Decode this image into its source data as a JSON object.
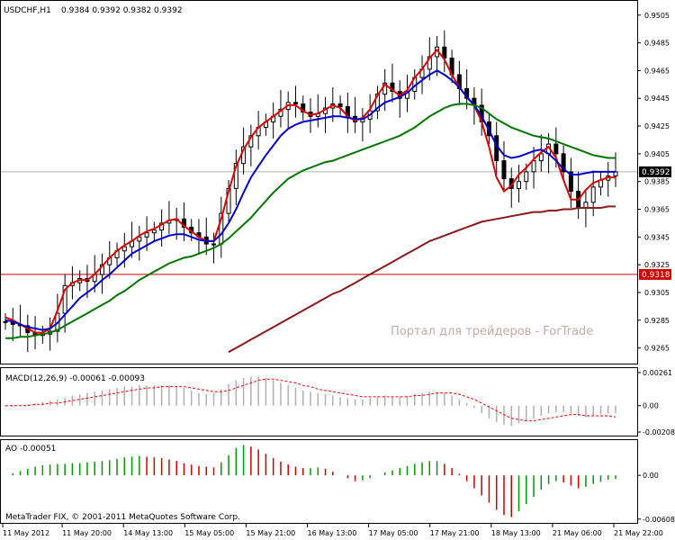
{
  "header": {
    "symbol_title": "USDCHF,H1",
    "ohlc": "0.9384 0.9392 0.9382 0.9392"
  },
  "watermark": "Портал для трейдеров - ForTrade",
  "footer": "MetaTrader FIX, © 2001-2011 MetaQuotes Software Corp.",
  "colors": {
    "candle": "#000000",
    "ema_fast": "#e00000",
    "ma_mid": "#0000cc",
    "ma_slow": "#007700",
    "ma_long": "#8b1a1a",
    "level_line": "#cc0000",
    "macd_hist": "#b0b0b0",
    "macd_signal": "#ff0000",
    "ao_up": "#009900",
    "ao_down": "#cc0000"
  },
  "chart_data": [
    {
      "panel": "price",
      "type": "line",
      "title": "USDCHF,H1",
      "ylim": [
        0.9255,
        0.9512
      ],
      "y_ticks": [
        "0.9505",
        "0.9485",
        "0.9465",
        "0.9445",
        "0.9425",
        "0.9405",
        "0.9385",
        "0.9365",
        "0.9345",
        "0.9325",
        "0.9305",
        "0.9285",
        "0.9265"
      ],
      "current_price_label": "0.9392",
      "current_price": 0.9392,
      "level_label": "0.9318",
      "level": 0.9318,
      "x_labels": [
        "11 May 2012",
        "11 May 20:00",
        "14 May 13:00",
        "15 May 05:00",
        "15 May 21:00",
        "16 May 13:00",
        "17 May 05:00",
        "17 May 21:00",
        "18 May 13:00",
        "21 May 06:00",
        "21 May 22:00"
      ],
      "series": [
        {
          "role": "close",
          "values": [
            0.9284,
            0.9282,
            0.9281,
            0.9276,
            0.9274,
            0.9275,
            0.9277,
            0.929,
            0.931,
            0.9312,
            0.9315,
            0.9313,
            0.9318,
            0.9325,
            0.933,
            0.9335,
            0.9338,
            0.9342,
            0.9345,
            0.9348,
            0.935,
            0.9355,
            0.9357,
            0.9358,
            0.9352,
            0.9348,
            0.9345,
            0.934,
            0.934,
            0.9362,
            0.938,
            0.9398,
            0.941,
            0.9418,
            0.9424,
            0.9428,
            0.9432,
            0.9437,
            0.9442,
            0.9441,
            0.9435,
            0.9432,
            0.9434,
            0.9438,
            0.9441,
            0.9439,
            0.9432,
            0.9428,
            0.943,
            0.9436,
            0.9448,
            0.9456,
            0.945,
            0.9445,
            0.945,
            0.946,
            0.9466,
            0.9475,
            0.9482,
            0.9474,
            0.9462,
            0.9452,
            0.9445,
            0.944,
            0.9428,
            0.9418,
            0.94,
            0.9387,
            0.938,
            0.9385,
            0.9392,
            0.94,
            0.9405,
            0.9412,
            0.9405,
            0.9392,
            0.9378,
            0.9366,
            0.937,
            0.9381,
            0.9386,
            0.9389,
            0.9392
          ]
        },
        {
          "role": "ma_fast",
          "values": [
            0.9287,
            0.9285,
            0.9282,
            0.9279,
            0.9276,
            0.9276,
            0.9279,
            0.9292,
            0.9307,
            0.9312,
            0.9314,
            0.9314,
            0.9318,
            0.9324,
            0.933,
            0.9335,
            0.9339,
            0.9342,
            0.9346,
            0.9349,
            0.9351,
            0.9354,
            0.9357,
            0.9358,
            0.9353,
            0.9349,
            0.9345,
            0.9342,
            0.9342,
            0.9358,
            0.9378,
            0.9396,
            0.9408,
            0.9417,
            0.9424,
            0.9428,
            0.9432,
            0.9436,
            0.944,
            0.944,
            0.9436,
            0.9433,
            0.9434,
            0.9437,
            0.944,
            0.9438,
            0.9432,
            0.9429,
            0.9431,
            0.9437,
            0.9447,
            0.9455,
            0.9451,
            0.9447,
            0.9451,
            0.946,
            0.9466,
            0.9474,
            0.948,
            0.9473,
            0.9462,
            0.9453,
            0.9446,
            0.944,
            0.9428,
            0.941,
            0.9388,
            0.9378,
            0.9382,
            0.939,
            0.9395,
            0.9401,
            0.9406,
            0.941,
            0.9402,
            0.9386,
            0.9372,
            0.9372,
            0.9379,
            0.9384,
            0.9386,
            0.9388,
            0.9388
          ]
        },
        {
          "role": "ma_mid",
          "values": [
            0.9285,
            0.9284,
            0.9282,
            0.928,
            0.9279,
            0.9278,
            0.9279,
            0.9283,
            0.9289,
            0.9295,
            0.9301,
            0.9305,
            0.9309,
            0.9314,
            0.9318,
            0.9323,
            0.9328,
            0.9333,
            0.9336,
            0.9339,
            0.9342,
            0.9344,
            0.9346,
            0.9347,
            0.9347,
            0.9345,
            0.9343,
            0.9342,
            0.9342,
            0.9347,
            0.9355,
            0.9365,
            0.9377,
            0.9388,
            0.9396,
            0.9404,
            0.9411,
            0.9418,
            0.9423,
            0.9426,
            0.9428,
            0.9429,
            0.943,
            0.9431,
            0.9432,
            0.9432,
            0.9431,
            0.943,
            0.943,
            0.9433,
            0.9438,
            0.9442,
            0.9444,
            0.9446,
            0.9449,
            0.9454,
            0.9458,
            0.9462,
            0.9465,
            0.9462,
            0.9458,
            0.9453,
            0.9446,
            0.944,
            0.9432,
            0.9422,
            0.9411,
            0.9404,
            0.9402,
            0.9403,
            0.9405,
            0.9407,
            0.9408,
            0.9405,
            0.94,
            0.9394,
            0.939,
            0.939,
            0.9391,
            0.9392,
            0.9392,
            0.9392,
            0.9392
          ]
        },
        {
          "role": "ma_slow",
          "values": [
            0.9272,
            0.9272,
            0.9273,
            0.9273,
            0.9274,
            0.9275,
            0.9276,
            0.9278,
            0.9281,
            0.9284,
            0.9287,
            0.929,
            0.9293,
            0.9296,
            0.9299,
            0.9303,
            0.9306,
            0.931,
            0.9314,
            0.9317,
            0.932,
            0.9323,
            0.9326,
            0.9328,
            0.933,
            0.9331,
            0.9333,
            0.9335,
            0.9337,
            0.934,
            0.9344,
            0.9349,
            0.9354,
            0.9359,
            0.9365,
            0.9371,
            0.9377,
            0.9382,
            0.9387,
            0.939,
            0.9393,
            0.9395,
            0.9397,
            0.9399,
            0.94,
            0.9402,
            0.9404,
            0.9406,
            0.9408,
            0.941,
            0.9412,
            0.9414,
            0.9416,
            0.9418,
            0.9421,
            0.9424,
            0.9428,
            0.9432,
            0.9435,
            0.9438,
            0.944,
            0.9441,
            0.9441,
            0.944,
            0.9438,
            0.9434,
            0.943,
            0.9427,
            0.9424,
            0.9422,
            0.942,
            0.9418,
            0.9417,
            0.9416,
            0.9414,
            0.9412,
            0.941,
            0.9408,
            0.9406,
            0.9404,
            0.9403,
            0.9402,
            0.9402
          ]
        },
        {
          "role": "ma_long",
          "x_start_index": 30,
          "values": [
            0.9262,
            0.9265,
            0.9268,
            0.9271,
            0.9274,
            0.9277,
            0.928,
            0.9283,
            0.9286,
            0.9289,
            0.9292,
            0.9295,
            0.9298,
            0.9301,
            0.9304,
            0.9306,
            0.9309,
            0.9312,
            0.9315,
            0.9318,
            0.9321,
            0.9324,
            0.9327,
            0.933,
            0.9333,
            0.9336,
            0.9339,
            0.9342,
            0.9344,
            0.9346,
            0.9348,
            0.935,
            0.9352,
            0.9354,
            0.9356,
            0.9357,
            0.9358,
            0.9359,
            0.936,
            0.9361,
            0.9362,
            0.9363,
            0.9363,
            0.9364,
            0.9364,
            0.9365,
            0.9365,
            0.9366,
            0.9366,
            0.9366,
            0.9366,
            0.9367,
            0.9367
          ]
        }
      ]
    },
    {
      "panel": "macd",
      "type": "bar",
      "title": "MACD(12,26,9) -0.00061 -0.00093",
      "ylim": [
        -0.00222,
        0.00275
      ],
      "y_ticks": [
        "0.00261",
        "0.00",
        "-0.00208"
      ],
      "series": [
        {
          "role": "histogram",
          "values": [
            -0.0001,
            -0.0001,
            0.0,
            0.0001,
            0.0002,
            0.0003,
            0.0004,
            0.0005,
            0.0006,
            0.0008,
            0.0009,
            0.001,
            0.0011,
            0.0012,
            0.0013,
            0.0014,
            0.0015,
            0.0015,
            0.0016,
            0.0016,
            0.0016,
            0.0016,
            0.0016,
            0.0015,
            0.0014,
            0.0012,
            0.001,
            0.0009,
            0.001,
            0.0013,
            0.0017,
            0.002,
            0.0022,
            0.0023,
            0.0023,
            0.0022,
            0.002,
            0.0018,
            0.0016,
            0.0014,
            0.0012,
            0.0011,
            0.001,
            0.0009,
            0.0008,
            0.0007,
            0.0006,
            0.0005,
            0.0005,
            0.0006,
            0.0007,
            0.0008,
            0.0007,
            0.0007,
            0.0008,
            0.0009,
            0.001,
            0.0011,
            0.0011,
            0.001,
            0.0008,
            0.0005,
            0.0002,
            -0.0002,
            -0.0006,
            -0.001,
            -0.0013,
            -0.0015,
            -0.0016,
            -0.0014,
            -0.0012,
            -0.001,
            -0.0008,
            -0.0006,
            -0.0005,
            -0.0005,
            -0.0006,
            -0.0008,
            -0.0009,
            -0.0008,
            -0.0007,
            -0.0006,
            -0.0006
          ]
        },
        {
          "role": "signal",
          "values": [
            0.0,
            0.0,
            0.0,
            0.0,
            0.0001,
            0.0001,
            0.0002,
            0.0002,
            0.0003,
            0.0004,
            0.0005,
            0.0006,
            0.0007,
            0.0008,
            0.0009,
            0.001,
            0.0011,
            0.0012,
            0.0013,
            0.0014,
            0.0014,
            0.0015,
            0.0015,
            0.0015,
            0.0015,
            0.0014,
            0.0013,
            0.0012,
            0.0011,
            0.0011,
            0.0012,
            0.0014,
            0.0016,
            0.0018,
            0.002,
            0.0021,
            0.0021,
            0.002,
            0.0019,
            0.0018,
            0.0016,
            0.0015,
            0.0013,
            0.0012,
            0.0011,
            0.001,
            0.0009,
            0.0008,
            0.0007,
            0.0007,
            0.0007,
            0.0007,
            0.0007,
            0.0007,
            0.0007,
            0.0008,
            0.0008,
            0.0009,
            0.001,
            0.001,
            0.001,
            0.0009,
            0.0007,
            0.0005,
            0.0002,
            -0.0001,
            -0.0004,
            -0.0007,
            -0.001,
            -0.0011,
            -0.0012,
            -0.0012,
            -0.0011,
            -0.001,
            -0.0009,
            -0.0008,
            -0.0007,
            -0.0007,
            -0.0008,
            -0.0008,
            -0.0008,
            -0.0008,
            -0.0009
          ]
        }
      ]
    },
    {
      "panel": "ao",
      "type": "bar",
      "title": "AO -0.00051",
      "ylim": [
        -0.00648,
        0.00452
      ],
      "y_ticks": [
        "0.00",
        "-0.00608"
      ],
      "series": [
        {
          "role": "ao",
          "values": [
            0.0,
            0.0003,
            0.0006,
            0.0009,
            0.0012,
            0.0014,
            0.0015,
            0.0016,
            0.0016,
            0.0017,
            0.0017,
            0.0018,
            0.0019,
            0.002,
            0.0021,
            0.0023,
            0.0025,
            0.0026,
            0.0027,
            0.0026,
            0.0025,
            0.0024,
            0.0022,
            0.002,
            0.0017,
            0.0015,
            0.0013,
            0.0012,
            0.0011,
            0.0018,
            0.0028,
            0.0038,
            0.0042,
            0.004,
            0.0036,
            0.003,
            0.0024,
            0.0019,
            0.0015,
            0.0012,
            0.001,
            0.001,
            0.0011,
            0.0009,
            0.0005,
            0.0,
            -0.0004,
            -0.0008,
            -0.0007,
            -0.0004,
            0.0,
            0.0004,
            0.0007,
            0.001,
            0.0013,
            0.0016,
            0.0018,
            0.002,
            0.002,
            0.0016,
            0.001,
            0.0002,
            -0.0008,
            -0.0018,
            -0.0028,
            -0.0038,
            -0.0048,
            -0.0055,
            -0.0058,
            -0.005,
            -0.004,
            -0.003,
            -0.002,
            -0.0012,
            -0.0008,
            -0.001,
            -0.0014,
            -0.0018,
            -0.0016,
            -0.0012,
            -0.0009,
            -0.0006,
            -0.0005
          ]
        }
      ]
    }
  ]
}
